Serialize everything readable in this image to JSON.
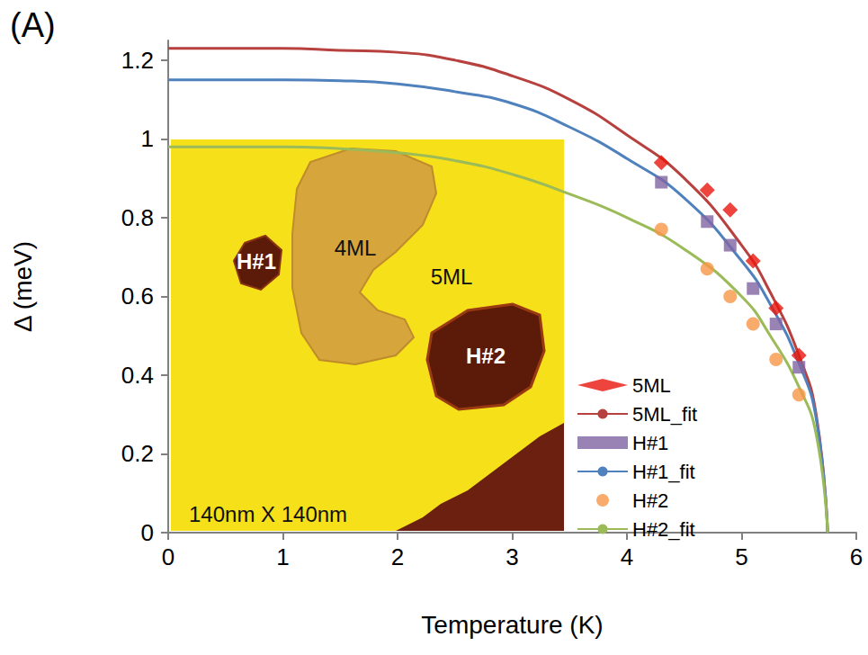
{
  "chart_data": {
    "type": "scatter",
    "title": "(A)",
    "x_label": "Temperature (K)",
    "y_label": "Δ (meV)",
    "xlim": [
      0,
      6
    ],
    "xticks": [
      0,
      1,
      2,
      3,
      4,
      5,
      6
    ],
    "ylim": [
      0,
      1.25
    ],
    "yticks": [
      0,
      0.2,
      0.4,
      0.6,
      0.8,
      1,
      1.2
    ],
    "grid": false,
    "legend": "lower right",
    "annotations": [
      "H#1",
      "4ML",
      "5ML",
      "H#2",
      "140nm X 140nm"
    ],
    "series": [
      {
        "name": "5ML",
        "type": "scatter",
        "marker": "diamond",
        "color": "#e8160c",
        "x": [
          4.3,
          4.7,
          4.9,
          5.1,
          5.3,
          5.5
        ],
        "values": [
          0.94,
          0.87,
          0.82,
          0.69,
          0.57,
          0.45
        ]
      },
      {
        "name": "5ML_fit",
        "type": "line",
        "line_style": "solid",
        "color": "#b7413e",
        "x": [
          0,
          0.5,
          1,
          1.5,
          2,
          2.5,
          3,
          3.5,
          4,
          4.5,
          5,
          5.25,
          5.5,
          5.65,
          5.75
        ],
        "values": [
          1.23,
          1.23,
          1.23,
          1.225,
          1.22,
          1.2,
          1.16,
          1.1,
          1.01,
          0.9,
          0.73,
          0.61,
          0.45,
          0.3,
          0
        ]
      },
      {
        "name": "H#1",
        "type": "scatter",
        "marker": "square",
        "color": "#8064a2",
        "x": [
          4.3,
          4.7,
          4.9,
          5.1,
          5.3,
          5.5
        ],
        "values": [
          0.89,
          0.79,
          0.73,
          0.62,
          0.53,
          0.42
        ]
      },
      {
        "name": "H#1_fit",
        "type": "line",
        "line_style": "solid",
        "color": "#4f81bd",
        "x": [
          0,
          0.5,
          1,
          1.5,
          2,
          2.5,
          3,
          3.5,
          4,
          4.5,
          5,
          5.25,
          5.5,
          5.65,
          5.75
        ],
        "values": [
          1.15,
          1.15,
          1.15,
          1.148,
          1.14,
          1.12,
          1.09,
          1.03,
          0.95,
          0.85,
          0.69,
          0.58,
          0.43,
          0.29,
          0
        ]
      },
      {
        "name": "H#2",
        "type": "scatter",
        "marker": "circle",
        "color": "#f79646",
        "x": [
          4.3,
          4.7,
          4.9,
          5.1,
          5.3,
          5.5
        ],
        "values": [
          0.77,
          0.67,
          0.6,
          0.53,
          0.44,
          0.35
        ]
      },
      {
        "name": "H#2_fit",
        "type": "line",
        "line_style": "solid",
        "color": "#9bbb59",
        "x": [
          0,
          0.5,
          1,
          1.5,
          2,
          2.5,
          3,
          3.5,
          4,
          4.5,
          5,
          5.25,
          5.5,
          5.65,
          5.75
        ],
        "values": [
          0.98,
          0.98,
          0.98,
          0.975,
          0.965,
          0.945,
          0.91,
          0.86,
          0.8,
          0.72,
          0.6,
          0.5,
          0.37,
          0.25,
          0
        ]
      }
    ]
  }
}
